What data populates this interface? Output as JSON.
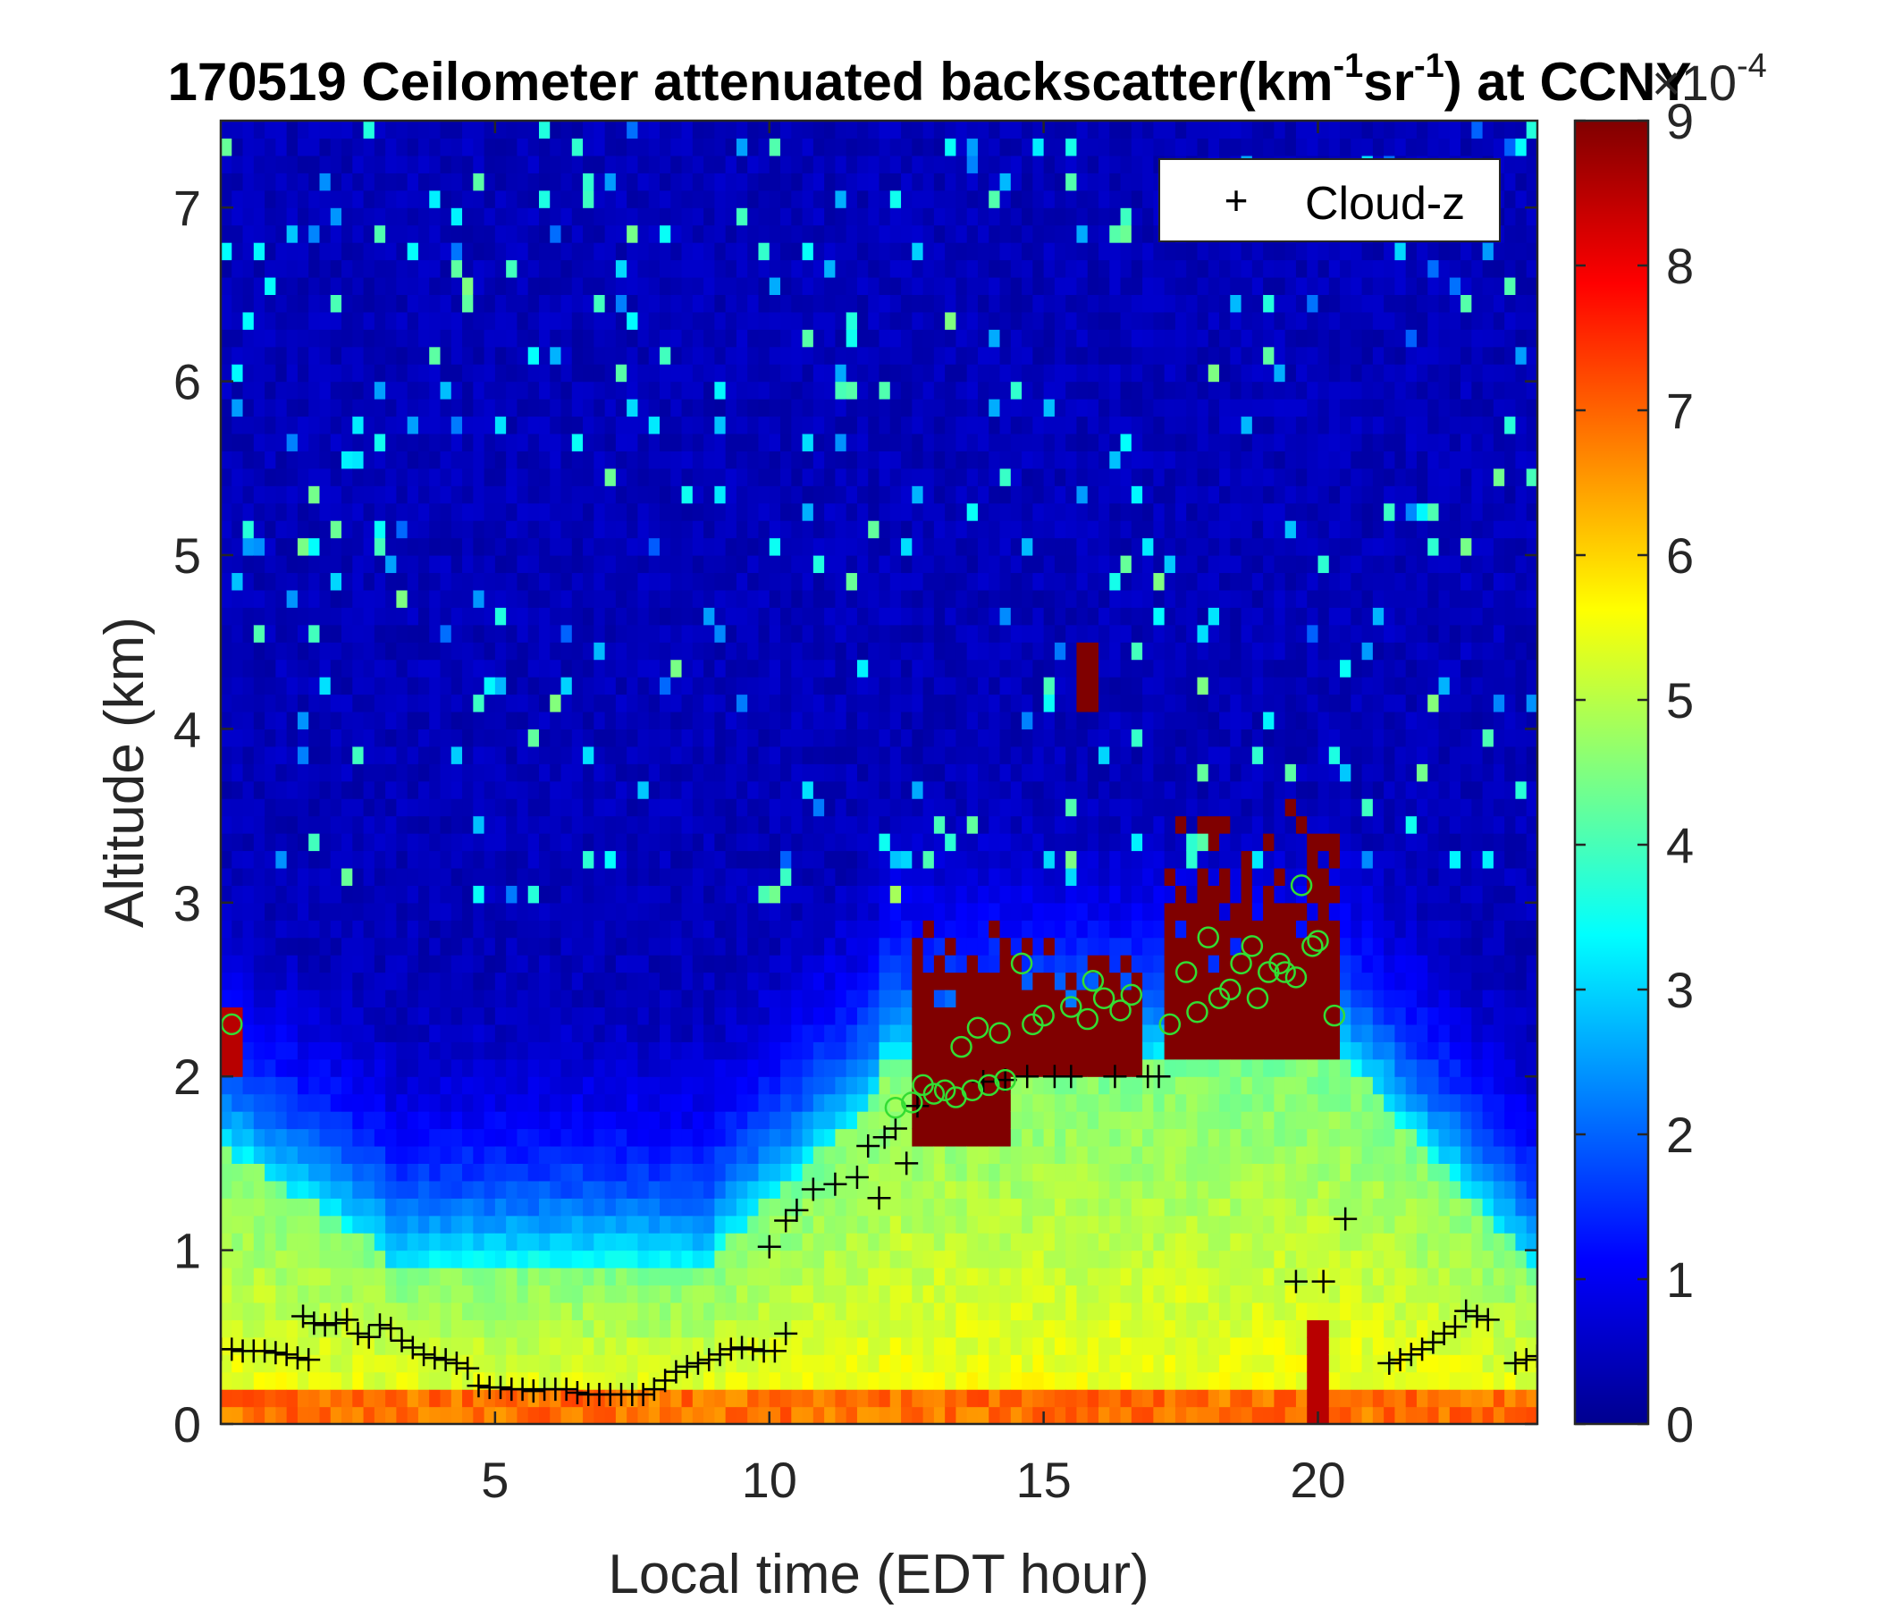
{
  "chart_data": {
    "type": "heatmap",
    "title": {
      "prefix": "170519 Ceilometer attenuated backscatter(km",
      "sup1": "-1",
      "mid": "sr",
      "sup2": "-1",
      "suffix": ") at CCNY"
    },
    "xlabel": "Local time (EDT hour)",
    "ylabel": "Altitude (km)",
    "xlim": [
      0,
      24
    ],
    "ylim": [
      0,
      7.5
    ],
    "xticks": [
      5,
      10,
      15,
      20
    ],
    "yticks": [
      0,
      1,
      2,
      3,
      4,
      5,
      6,
      7
    ],
    "colorbar": {
      "min": 0,
      "max": 9,
      "ticks": [
        0,
        1,
        2,
        3,
        4,
        5,
        6,
        7,
        8,
        9
      ],
      "multiplier_base": "×10",
      "multiplier_exp": "-4",
      "colormap": "jet"
    },
    "legend": {
      "position": "top-right",
      "entries": [
        {
          "marker": "+",
          "label": "Cloud-z"
        }
      ]
    },
    "series": [
      {
        "name": "Cloud-z",
        "marker": "+",
        "color": "#000000",
        "points": [
          [
            0.0,
            0.43
          ],
          [
            0.2,
            0.43
          ],
          [
            0.4,
            0.42
          ],
          [
            0.6,
            0.42
          ],
          [
            0.8,
            0.42
          ],
          [
            1.0,
            0.41
          ],
          [
            1.2,
            0.4
          ],
          [
            1.4,
            0.38
          ],
          [
            1.6,
            0.37
          ],
          [
            1.5,
            0.62
          ],
          [
            1.7,
            0.58
          ],
          [
            1.9,
            0.57
          ],
          [
            2.1,
            0.58
          ],
          [
            2.3,
            0.6
          ],
          [
            2.5,
            0.52
          ],
          [
            2.7,
            0.5
          ],
          [
            2.9,
            0.57
          ],
          [
            3.1,
            0.55
          ],
          [
            3.3,
            0.48
          ],
          [
            3.5,
            0.44
          ],
          [
            3.7,
            0.4
          ],
          [
            3.9,
            0.38
          ],
          [
            4.1,
            0.37
          ],
          [
            4.3,
            0.35
          ],
          [
            4.5,
            0.32
          ],
          [
            4.7,
            0.22
          ],
          [
            4.9,
            0.21
          ],
          [
            5.1,
            0.21
          ],
          [
            5.3,
            0.2
          ],
          [
            5.5,
            0.2
          ],
          [
            5.7,
            0.19
          ],
          [
            5.9,
            0.2
          ],
          [
            6.1,
            0.2
          ],
          [
            6.3,
            0.2
          ],
          [
            6.5,
            0.18
          ],
          [
            6.7,
            0.17
          ],
          [
            6.9,
            0.17
          ],
          [
            7.1,
            0.17
          ],
          [
            7.3,
            0.17
          ],
          [
            7.5,
            0.17
          ],
          [
            7.7,
            0.17
          ],
          [
            7.9,
            0.2
          ],
          [
            8.1,
            0.25
          ],
          [
            8.3,
            0.3
          ],
          [
            8.5,
            0.33
          ],
          [
            8.7,
            0.35
          ],
          [
            8.9,
            0.37
          ],
          [
            9.1,
            0.4
          ],
          [
            9.3,
            0.43
          ],
          [
            9.5,
            0.44
          ],
          [
            9.7,
            0.43
          ],
          [
            9.9,
            0.42
          ],
          [
            10.1,
            0.42
          ],
          [
            10.3,
            0.52
          ],
          [
            10.0,
            1.02
          ],
          [
            10.3,
            1.17
          ],
          [
            10.5,
            1.23
          ],
          [
            10.8,
            1.35
          ],
          [
            11.2,
            1.38
          ],
          [
            11.6,
            1.42
          ],
          [
            12.0,
            1.3
          ],
          [
            11.8,
            1.6
          ],
          [
            12.1,
            1.65
          ],
          [
            12.3,
            1.7
          ],
          [
            12.5,
            1.5
          ],
          [
            12.7,
            1.83
          ],
          [
            13.9,
            1.97
          ],
          [
            14.3,
            1.98
          ],
          [
            14.7,
            2.0
          ],
          [
            15.2,
            2.0
          ],
          [
            15.5,
            2.0
          ],
          [
            16.3,
            2.0
          ],
          [
            16.9,
            2.0
          ],
          [
            17.1,
            2.0
          ],
          [
            19.6,
            0.82
          ],
          [
            20.1,
            0.82
          ],
          [
            20.5,
            1.18
          ],
          [
            21.3,
            0.35
          ],
          [
            21.5,
            0.37
          ],
          [
            21.7,
            0.4
          ],
          [
            21.9,
            0.43
          ],
          [
            22.1,
            0.47
          ],
          [
            22.3,
            0.52
          ],
          [
            22.5,
            0.56
          ],
          [
            22.7,
            0.65
          ],
          [
            22.9,
            0.62
          ],
          [
            23.1,
            0.6
          ],
          [
            23.6,
            0.35
          ],
          [
            23.8,
            0.37
          ],
          [
            24.0,
            0.39
          ]
        ]
      },
      {
        "name": "",
        "marker": "o",
        "color": "#33dd33",
        "points": [
          [
            0.2,
            2.3
          ],
          [
            12.3,
            1.82
          ],
          [
            12.6,
            1.85
          ],
          [
            12.8,
            1.95
          ],
          [
            13.0,
            1.9
          ],
          [
            13.2,
            1.92
          ],
          [
            13.4,
            1.88
          ],
          [
            13.7,
            1.92
          ],
          [
            14.0,
            1.95
          ],
          [
            14.3,
            1.98
          ],
          [
            13.5,
            2.17
          ],
          [
            13.8,
            2.28
          ],
          [
            14.2,
            2.25
          ],
          [
            14.6,
            2.65
          ],
          [
            14.8,
            2.3
          ],
          [
            15.0,
            2.35
          ],
          [
            15.5,
            2.4
          ],
          [
            15.8,
            2.33
          ],
          [
            15.9,
            2.55
          ],
          [
            16.1,
            2.45
          ],
          [
            16.4,
            2.38
          ],
          [
            16.6,
            2.47
          ],
          [
            17.3,
            2.3
          ],
          [
            17.6,
            2.6
          ],
          [
            17.8,
            2.37
          ],
          [
            18.0,
            2.8
          ],
          [
            18.2,
            2.45
          ],
          [
            18.4,
            2.5
          ],
          [
            18.6,
            2.65
          ],
          [
            18.8,
            2.75
          ],
          [
            18.9,
            2.45
          ],
          [
            19.1,
            2.6
          ],
          [
            19.3,
            2.65
          ],
          [
            19.4,
            2.6
          ],
          [
            19.6,
            2.57
          ],
          [
            19.7,
            3.1
          ],
          [
            19.9,
            2.75
          ],
          [
            20.0,
            2.78
          ],
          [
            20.3,
            2.35
          ]
        ]
      }
    ]
  }
}
